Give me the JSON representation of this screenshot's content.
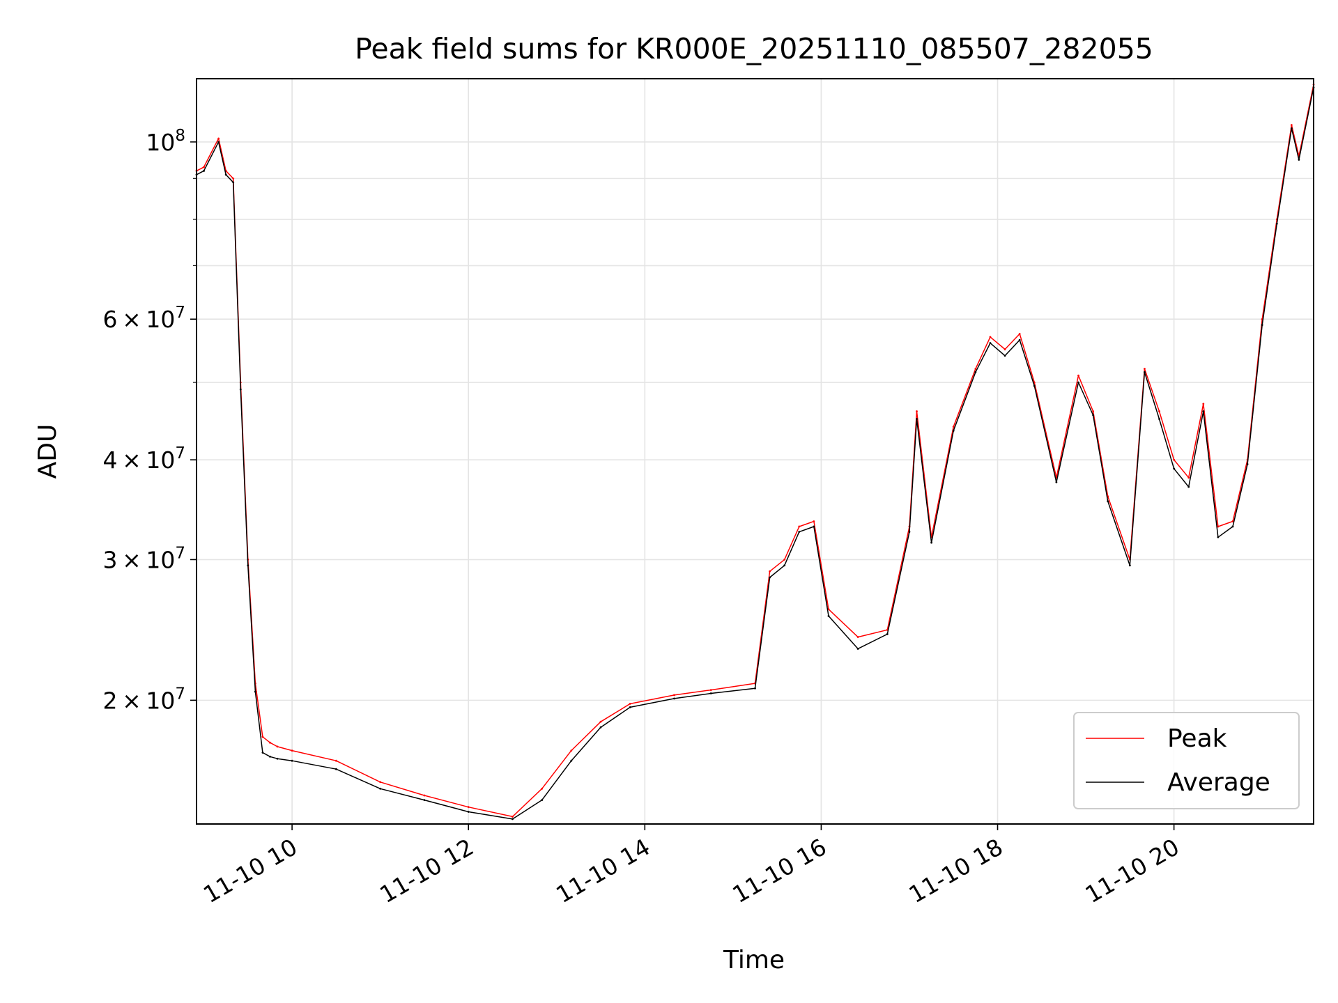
{
  "chart_data": {
    "type": "line",
    "title": "Peak field sums for KR000E_20251110_085507_282055",
    "xlabel": "Time",
    "ylabel": "ADU",
    "y_scale": "log",
    "xlim": [
      "2025-11-10 08:55",
      "2025-11-10 21:35"
    ],
    "ylim": [
      14000000,
      120000000
    ],
    "grid": true,
    "legend_position": "lower-right",
    "x_ticks": [
      "11-10 10",
      "11-10 12",
      "11-10 14",
      "11-10 16",
      "11-10 18",
      "11-10 20"
    ],
    "x_tick_values": [
      "2025-11-10 10:00",
      "2025-11-10 12:00",
      "2025-11-10 14:00",
      "2025-11-10 16:00",
      "2025-11-10 18:00",
      "2025-11-10 20:00"
    ],
    "y_ticks": [
      {
        "value": 20000000,
        "mantissa": "2",
        "base": "10",
        "exp": "7"
      },
      {
        "value": 30000000,
        "mantissa": "3",
        "base": "10",
        "exp": "7"
      },
      {
        "value": 40000000,
        "mantissa": "4",
        "base": "10",
        "exp": "7"
      },
      {
        "value": 60000000,
        "mantissa": "6",
        "base": "10",
        "exp": "7"
      },
      {
        "value": 100000000,
        "mantissa": "",
        "base": "10",
        "exp": "8"
      }
    ],
    "x": [
      "2025-11-10 08:55",
      "2025-11-10 09:00",
      "2025-11-10 09:10",
      "2025-11-10 09:15",
      "2025-11-10 09:20",
      "2025-11-10 09:25",
      "2025-11-10 09:30",
      "2025-11-10 09:35",
      "2025-11-10 09:40",
      "2025-11-10 09:45",
      "2025-11-10 09:50",
      "2025-11-10 10:00",
      "2025-11-10 10:30",
      "2025-11-10 11:00",
      "2025-11-10 11:30",
      "2025-11-10 12:00",
      "2025-11-10 12:30",
      "2025-11-10 12:50",
      "2025-11-10 13:10",
      "2025-11-10 13:30",
      "2025-11-10 13:50",
      "2025-11-10 14:20",
      "2025-11-10 14:45",
      "2025-11-10 15:15",
      "2025-11-10 15:25",
      "2025-11-10 15:35",
      "2025-11-10 15:45",
      "2025-11-10 15:55",
      "2025-11-10 16:05",
      "2025-11-10 16:25",
      "2025-11-10 16:45",
      "2025-11-10 17:00",
      "2025-11-10 17:05",
      "2025-11-10 17:15",
      "2025-11-10 17:30",
      "2025-11-10 17:45",
      "2025-11-10 17:55",
      "2025-11-10 18:05",
      "2025-11-10 18:15",
      "2025-11-10 18:25",
      "2025-11-10 18:40",
      "2025-11-10 18:55",
      "2025-11-10 19:05",
      "2025-11-10 19:15",
      "2025-11-10 19:30",
      "2025-11-10 19:40",
      "2025-11-10 19:50",
      "2025-11-10 20:00",
      "2025-11-10 20:10",
      "2025-11-10 20:20",
      "2025-11-10 20:30",
      "2025-11-10 20:40",
      "2025-11-10 20:50",
      "2025-11-10 21:00",
      "2025-11-10 21:10",
      "2025-11-10 21:20",
      "2025-11-10 21:25",
      "2025-11-10 21:35"
    ],
    "series": [
      {
        "name": "Peak",
        "color": "#ff0000",
        "values": [
          92000000,
          93000000,
          101000000,
          92000000,
          90000000,
          50000000,
          30000000,
          21000000,
          18000000,
          17700000,
          17500000,
          17300000,
          16800000,
          15800000,
          15200000,
          14700000,
          14300000,
          15500000,
          17300000,
          18800000,
          19800000,
          20300000,
          20600000,
          21000000,
          29000000,
          30000000,
          33000000,
          33500000,
          26000000,
          24000000,
          24500000,
          33000000,
          46000000,
          32000000,
          44000000,
          52000000,
          57000000,
          55000000,
          57500000,
          50000000,
          38000000,
          51000000,
          46000000,
          36000000,
          30000000,
          52000000,
          46000000,
          40000000,
          38000000,
          47000000,
          33000000,
          33500000,
          40000000,
          60000000,
          80000000,
          105000000,
          96000000,
          118000000
        ]
      },
      {
        "name": "Average",
        "color": "#000000",
        "values": [
          91000000,
          92000000,
          100000000,
          91000000,
          89000000,
          49000000,
          29500000,
          20500000,
          17200000,
          17000000,
          16900000,
          16800000,
          16400000,
          15500000,
          15000000,
          14500000,
          14200000,
          15000000,
          16800000,
          18500000,
          19600000,
          20100000,
          20400000,
          20700000,
          28500000,
          29500000,
          32500000,
          33000000,
          25500000,
          23200000,
          24200000,
          32500000,
          45000000,
          31500000,
          43500000,
          51500000,
          56000000,
          54000000,
          56500000,
          49500000,
          37500000,
          50000000,
          45500000,
          35500000,
          29500000,
          51500000,
          45000000,
          39000000,
          37000000,
          46000000,
          32000000,
          33000000,
          39500000,
          59000000,
          79000000,
          104000000,
          95000000,
          117000000
        ]
      }
    ],
    "legend": [
      "Peak",
      "Average"
    ]
  }
}
